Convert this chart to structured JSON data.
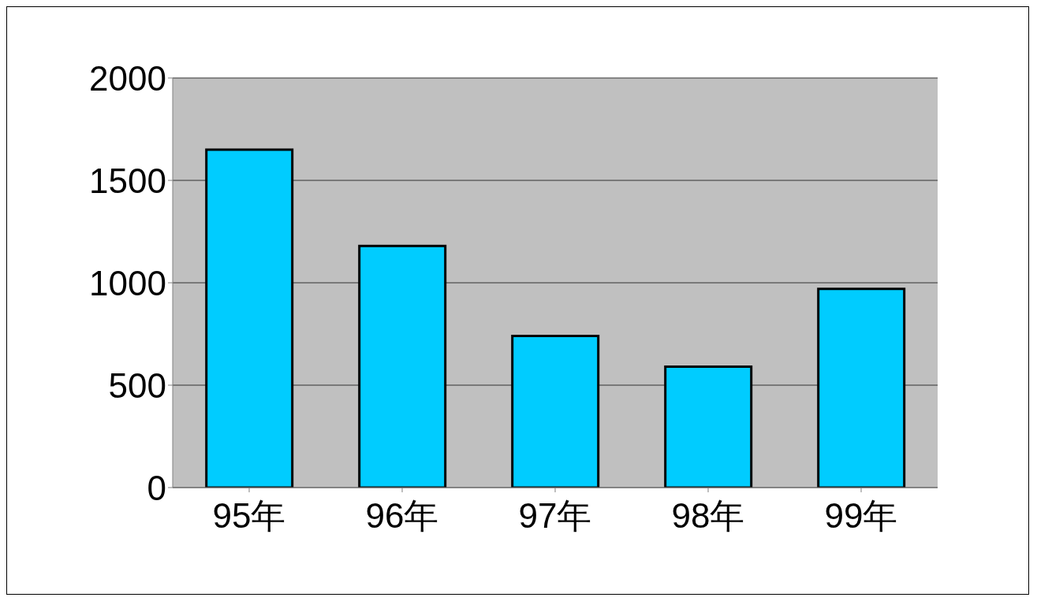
{
  "chart_data": {
    "type": "bar",
    "categories": [
      "95年",
      "96年",
      "97年",
      "98年",
      "99年"
    ],
    "values": [
      1650,
      1180,
      740,
      590,
      970
    ],
    "color": "#00ccff",
    "ylim": [
      0,
      2000
    ],
    "yticks": [
      0,
      500,
      1000,
      1500,
      2000
    ],
    "grid": "y"
  }
}
